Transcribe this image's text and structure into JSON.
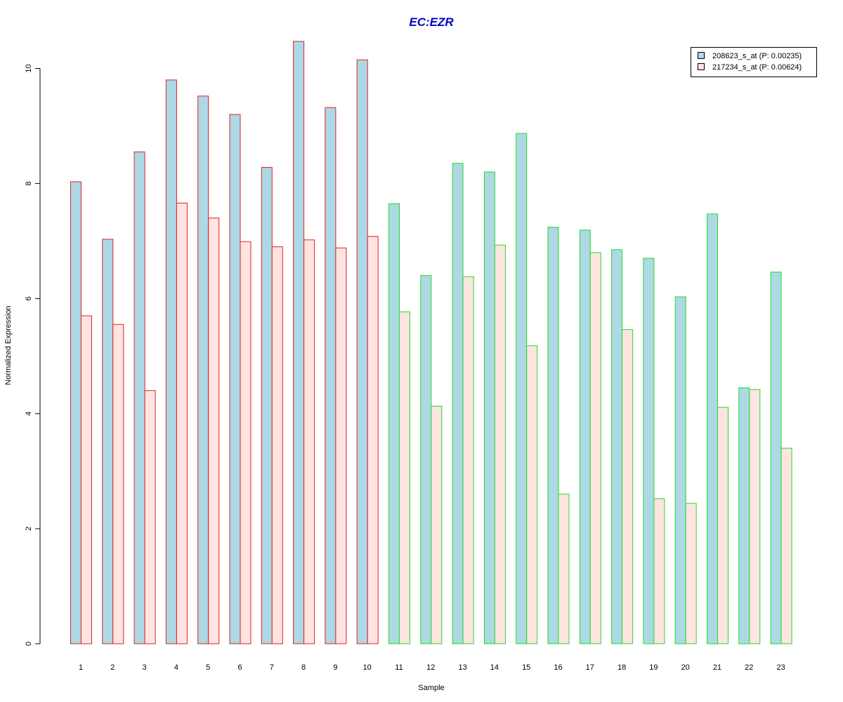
{
  "chart_data": {
    "type": "bar",
    "title": "EC:EZR",
    "xlabel": "Sample",
    "ylabel": "Normalized Expression",
    "ylim": [
      0,
      10.5
    ],
    "yticks": [
      0,
      2,
      4,
      6,
      8,
      10
    ],
    "grid": false,
    "legend_position": "top-right",
    "categories": [
      "1",
      "2",
      "3",
      "4",
      "5",
      "6",
      "7",
      "8",
      "9",
      "10",
      "11",
      "12",
      "13",
      "14",
      "15",
      "16",
      "17",
      "18",
      "19",
      "20",
      "21",
      "22",
      "23"
    ],
    "group_border_colors": [
      "#dd2222",
      "#dd2222",
      "#dd2222",
      "#dd2222",
      "#dd2222",
      "#dd2222",
      "#dd2222",
      "#dd2222",
      "#dd2222",
      "#dd2222",
      "#22dd22",
      "#22dd22",
      "#22dd22",
      "#22dd22",
      "#22dd22",
      "#22dd22",
      "#22dd22",
      "#22dd22",
      "#22dd22",
      "#22dd22",
      "#22dd22",
      "#22dd22",
      "#22dd22"
    ],
    "series": [
      {
        "name": "208623_s_at (P: 0.00235)",
        "color": "#add8e6",
        "values": [
          8.03,
          7.03,
          8.55,
          9.8,
          9.52,
          9.2,
          8.28,
          10.47,
          9.32,
          10.15,
          7.65,
          6.4,
          8.35,
          8.2,
          8.87,
          7.24,
          7.19,
          6.85,
          6.7,
          6.03,
          7.47,
          4.45,
          6.46
        ]
      },
      {
        "name": "217234_s_at (P: 0.00624)",
        "color": "#ffe4e1",
        "values": [
          5.7,
          5.55,
          4.4,
          7.66,
          7.4,
          6.99,
          6.9,
          7.02,
          6.88,
          7.08,
          5.77,
          4.13,
          6.38,
          6.93,
          5.18,
          2.6,
          6.8,
          5.46,
          2.52,
          2.44,
          4.11,
          4.42,
          3.4
        ]
      }
    ],
    "colors": {
      "title": "#0000cc",
      "axis": "#000000",
      "legend_border": "#000000"
    }
  }
}
